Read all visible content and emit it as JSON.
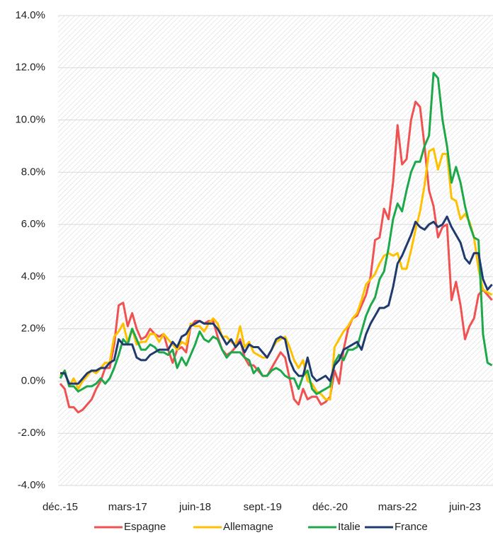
{
  "chart_data": {
    "type": "line",
    "categories": [
      "déc.-15",
      null,
      null,
      null,
      null,
      null,
      null,
      null,
      null,
      null,
      null,
      null,
      null,
      null,
      null,
      "mars-17",
      null,
      null,
      null,
      null,
      null,
      null,
      null,
      null,
      null,
      null,
      null,
      null,
      null,
      null,
      "juin-18",
      null,
      null,
      null,
      null,
      null,
      null,
      null,
      null,
      null,
      null,
      null,
      null,
      null,
      null,
      "sept.-19",
      null,
      null,
      null,
      null,
      null,
      null,
      null,
      null,
      null,
      null,
      null,
      null,
      null,
      null,
      "déc.-20",
      null,
      null,
      null,
      null,
      null,
      null,
      null,
      null,
      null,
      null,
      null,
      null,
      null,
      null,
      "mars-22",
      null,
      null,
      null,
      null,
      null,
      null,
      null,
      null,
      null,
      null,
      null,
      null,
      null,
      null,
      "juin-23",
      null,
      null,
      null,
      null,
      null,
      null
    ],
    "series": [
      {
        "name": "Espagne",
        "color": "#f05252",
        "values": [
          -0.1,
          -0.3,
          -1.0,
          -1.0,
          -1.2,
          -1.1,
          -0.9,
          -0.7,
          -0.3,
          0.0,
          0.5,
          0.5,
          1.4,
          2.9,
          3.0,
          2.1,
          2.6,
          2.0,
          1.6,
          1.7,
          2.0,
          1.8,
          1.7,
          1.8,
          1.2,
          0.7,
          1.2,
          1.3,
          1.1,
          2.1,
          2.3,
          2.3,
          2.2,
          2.3,
          2.3,
          1.7,
          1.2,
          1.0,
          1.1,
          1.3,
          1.6,
          0.9,
          0.6,
          0.6,
          0.4,
          0.2,
          0.2,
          0.5,
          0.8,
          1.1,
          0.9,
          0.1,
          -0.7,
          -0.9,
          -0.3,
          -0.7,
          -0.6,
          -0.6,
          -0.9,
          -0.8,
          -0.6,
          0.4,
          -0.1,
          1.2,
          2.0,
          2.4,
          2.5,
          2.9,
          3.3,
          4.0,
          5.4,
          5.5,
          6.6,
          6.2,
          7.6,
          9.8,
          8.3,
          8.5,
          10.0,
          10.7,
          10.5,
          9.0,
          7.3,
          6.7,
          5.5,
          5.9,
          6.0,
          3.1,
          3.8,
          2.9,
          1.6,
          2.1,
          2.4,
          3.3,
          3.5,
          3.3,
          3.1
        ]
      },
      {
        "name": "Allemagne",
        "color": "#ffc000",
        "values": [
          0.2,
          0.4,
          -0.2,
          0.1,
          -0.3,
          0.0,
          0.2,
          0.4,
          0.3,
          0.5,
          0.7,
          0.7,
          1.7,
          1.9,
          2.2,
          1.5,
          2.0,
          1.4,
          1.5,
          1.5,
          1.8,
          1.8,
          1.5,
          1.8,
          1.6,
          1.4,
          1.2,
          1.5,
          1.4,
          2.2,
          2.1,
          2.1,
          1.9,
          2.2,
          2.4,
          2.2,
          1.7,
          1.7,
          1.5,
          1.4,
          2.1,
          1.3,
          1.5,
          1.1,
          1.0,
          0.9,
          0.9,
          1.2,
          1.5,
          1.6,
          1.7,
          1.3,
          0.8,
          0.5,
          0.8,
          0.0,
          -0.1,
          -0.4,
          -0.5,
          -0.7,
          -0.7,
          1.3,
          1.6,
          1.9,
          2.1,
          2.4,
          2.6,
          3.1,
          3.7,
          3.9,
          4.1,
          4.5,
          4.8,
          4.9,
          4.8,
          4.9,
          4.3,
          4.3,
          5.0,
          5.8,
          6.5,
          7.5,
          8.8,
          8.9,
          8.1,
          8.7,
          8.7,
          7.0,
          6.9,
          6.2,
          6.4,
          6.1,
          5.5,
          4.3,
          3.5,
          3.4,
          3.3
        ]
      },
      {
        "name": "Italie",
        "color": "#1da84a",
        "values": [
          0.1,
          0.4,
          -0.2,
          -0.2,
          -0.4,
          -0.3,
          -0.2,
          -0.2,
          -0.1,
          0.1,
          -0.1,
          0.1,
          0.5,
          1.0,
          1.6,
          1.4,
          2.0,
          1.6,
          1.2,
          1.2,
          1.4,
          1.3,
          1.1,
          1.1,
          1.0,
          1.2,
          0.5,
          0.9,
          0.6,
          1.0,
          1.4,
          1.9,
          1.6,
          1.5,
          1.7,
          1.6,
          1.2,
          0.9,
          1.1,
          1.1,
          1.1,
          0.9,
          0.8,
          0.3,
          0.5,
          0.2,
          0.2,
          0.4,
          0.5,
          0.4,
          0.2,
          0.1,
          0.1,
          -0.3,
          0.2,
          0.4,
          -0.3,
          -0.5,
          -0.4,
          -0.3,
          -0.2,
          0.7,
          1.0,
          0.8,
          1.2,
          1.2,
          1.3,
          1.9,
          2.5,
          2.9,
          3.2,
          3.9,
          4.2,
          5.1,
          6.2,
          6.8,
          6.5,
          7.3,
          8.0,
          8.4,
          8.4,
          9.0,
          9.4,
          11.8,
          11.6,
          10.0,
          9.0,
          7.6,
          8.2,
          7.6,
          6.7,
          6.0,
          5.5,
          5.4,
          1.8,
          0.7,
          0.6
        ]
      },
      {
        "name": "France",
        "color": "#1f3a6e",
        "values": [
          0.3,
          0.3,
          -0.1,
          -0.1,
          -0.1,
          0.1,
          0.3,
          0.4,
          0.4,
          0.5,
          0.5,
          0.7,
          0.8,
          1.6,
          1.4,
          1.4,
          1.4,
          0.9,
          0.8,
          0.8,
          1.0,
          1.1,
          1.2,
          1.2,
          1.2,
          1.5,
          1.3,
          1.7,
          1.8,
          2.1,
          2.2,
          2.3,
          2.2,
          2.2,
          2.2,
          2.0,
          1.7,
          1.4,
          1.6,
          1.3,
          1.5,
          1.1,
          1.4,
          1.3,
          1.3,
          1.1,
          0.9,
          1.2,
          1.6,
          1.7,
          1.6,
          0.8,
          0.4,
          0.2,
          0.2,
          0.9,
          0.2,
          0.0,
          0.1,
          0.2,
          0.0,
          0.6,
          0.8,
          1.2,
          1.3,
          1.4,
          1.5,
          1.2,
          1.8,
          2.2,
          2.5,
          2.8,
          2.8,
          2.9,
          3.6,
          4.5,
          4.8,
          5.2,
          5.6,
          6.1,
          5.9,
          5.8,
          6.0,
          6.1,
          5.9,
          6.0,
          6.3,
          5.9,
          5.6,
          5.3,
          4.7,
          4.5,
          4.9,
          4.9,
          3.9,
          3.5,
          3.7
        ]
      }
    ],
    "ylim": [
      -4,
      14
    ],
    "yticks": [
      {
        "value": -4,
        "label": "-4.0%"
      },
      {
        "value": -2,
        "label": "-2.0%"
      },
      {
        "value": 0,
        "label": "0.0%"
      },
      {
        "value": 2,
        "label": "2.0%"
      },
      {
        "value": 4,
        "label": "4.0%"
      },
      {
        "value": 6,
        "label": "6.0%"
      },
      {
        "value": 8,
        "label": "8.0%"
      },
      {
        "value": 10,
        "label": "10.0%"
      },
      {
        "value": 12,
        "label": "12.0%"
      },
      {
        "value": 14,
        "label": "14.0%"
      }
    ],
    "grid": true,
    "legend": "bottom"
  }
}
